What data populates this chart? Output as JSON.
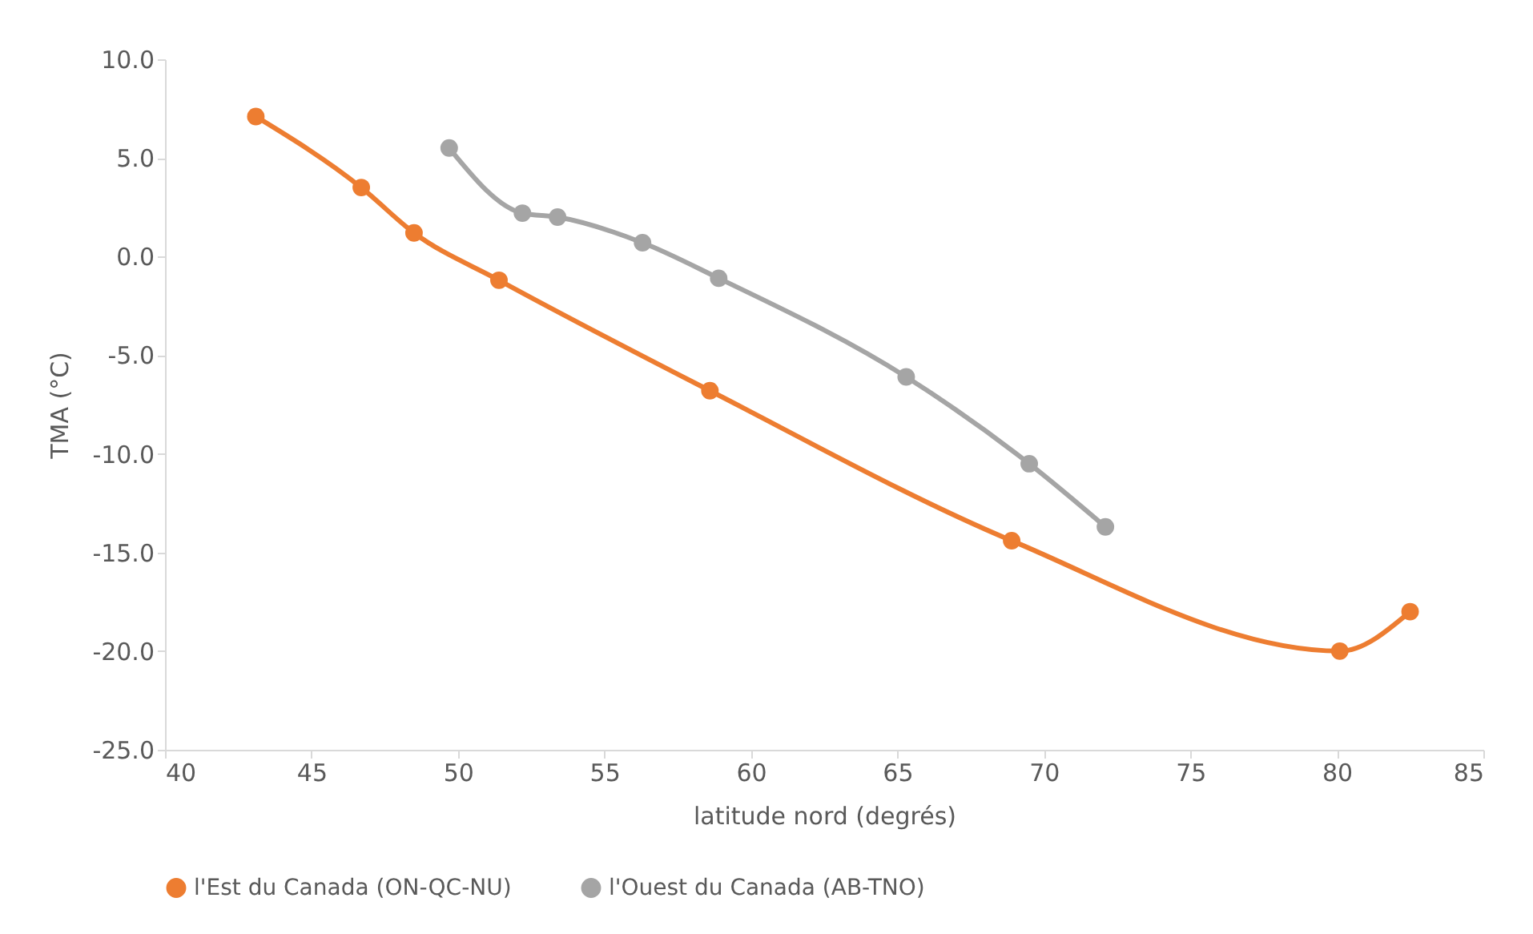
{
  "chart_data": {
    "type": "line",
    "xlabel": "latitude nord (degrés)",
    "ylabel": "TMA (°C)",
    "xlim": [
      40,
      85
    ],
    "xticks": [
      40,
      45,
      50,
      55,
      60,
      65,
      70,
      75,
      80,
      85
    ],
    "ylim": [
      -25,
      10
    ],
    "yticks": [
      {
        "value": -25,
        "label": "-25.0"
      },
      {
        "value": -20,
        "label": "-20.0"
      },
      {
        "value": -15,
        "label": "-15.0"
      },
      {
        "value": -10,
        "label": "-10.0"
      },
      {
        "value": -5,
        "label": "-5.0"
      },
      {
        "value": 0,
        "label": "0.0"
      },
      {
        "value": 5,
        "label": "5.0"
      },
      {
        "value": 10,
        "label": "10.0"
      }
    ],
    "grid": false,
    "legend": "bottom",
    "marker": "circle",
    "line_style": "solid",
    "series": [
      {
        "name": "l'Est du Canada (ON-QC-NU)",
        "color": "#ed7d31",
        "x": [
          43.1,
          46.7,
          48.5,
          51.4,
          58.6,
          68.9,
          80.1,
          82.5
        ],
        "values": [
          7.1,
          3.5,
          1.2,
          -1.2,
          -6.8,
          -14.4,
          -20.0,
          -18.0
        ]
      },
      {
        "name": "l'Ouest du Canada (AB-TNO)",
        "color": "#a5a5a5",
        "x": [
          49.7,
          52.2,
          53.4,
          56.3,
          58.9,
          65.3,
          69.5,
          72.1
        ],
        "values": [
          5.5,
          2.2,
          2.0,
          0.7,
          -1.1,
          -6.1,
          -10.5,
          -13.7
        ]
      }
    ]
  }
}
